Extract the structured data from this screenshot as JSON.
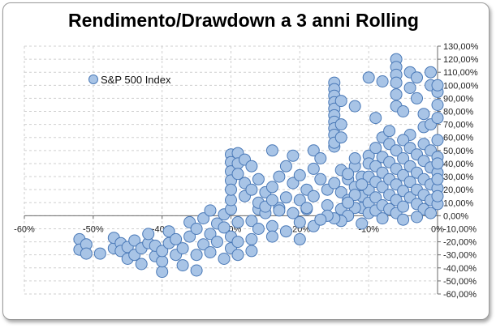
{
  "chart_data": {
    "type": "scatter",
    "title": "Rendimento/Drawdown a 3 anni Rolling",
    "xlabel": "",
    "ylabel": "",
    "xlim": [
      -0.6,
      0.0
    ],
    "ylim": [
      -0.6,
      1.3
    ],
    "x_ticks": [
      "-60%",
      "-50%",
      "-40%",
      "-30%",
      "-20%",
      "-10%",
      "0%"
    ],
    "y_ticks": [
      "130,00%",
      "120,00%",
      "110,00%",
      "100,00%",
      "90,00%",
      "80,00%",
      "70,00%",
      "60,00%",
      "50,00%",
      "40,00%",
      "30,00%",
      "20,00%",
      "10,00%",
      "0,00%",
      "-10,00%",
      "-20,00%",
      "-30,00%",
      "-40,00%",
      "-50,00%",
      "-60,00%"
    ],
    "grid": true,
    "legend_position": "top-left",
    "series": [
      {
        "name": "S&P 500 Index",
        "color": "#a8c4e6",
        "points": [
          [
            -0.52,
            -0.18
          ],
          [
            -0.52,
            -0.26
          ],
          [
            -0.51,
            -0.22
          ],
          [
            -0.51,
            -0.29
          ],
          [
            -0.49,
            -0.29
          ],
          [
            -0.47,
            -0.25
          ],
          [
            -0.47,
            -0.17
          ],
          [
            -0.46,
            -0.21
          ],
          [
            -0.46,
            -0.27
          ],
          [
            -0.45,
            -0.33
          ],
          [
            -0.45,
            -0.24
          ],
          [
            -0.44,
            -0.19
          ],
          [
            -0.44,
            -0.3
          ],
          [
            -0.43,
            -0.37
          ],
          [
            -0.43,
            -0.25
          ],
          [
            -0.42,
            -0.21
          ],
          [
            -0.42,
            -0.14
          ],
          [
            -0.41,
            -0.31
          ],
          [
            -0.41,
            -0.23
          ],
          [
            -0.4,
            -0.43
          ],
          [
            -0.4,
            -0.35
          ],
          [
            -0.4,
            -0.27
          ],
          [
            -0.39,
            -0.12
          ],
          [
            -0.39,
            -0.21
          ],
          [
            -0.38,
            -0.18
          ],
          [
            -0.38,
            -0.3
          ],
          [
            -0.37,
            -0.38
          ],
          [
            -0.37,
            -0.25
          ],
          [
            -0.36,
            -0.16
          ],
          [
            -0.36,
            -0.05
          ],
          [
            -0.35,
            -0.42
          ],
          [
            -0.35,
            -0.3
          ],
          [
            -0.35,
            -0.1
          ],
          [
            -0.34,
            -0.22
          ],
          [
            -0.34,
            -0.02
          ],
          [
            -0.33,
            -0.28
          ],
          [
            -0.33,
            -0.14
          ],
          [
            -0.33,
            0.04
          ],
          [
            -0.32,
            -0.06
          ],
          [
            -0.32,
            -0.2
          ],
          [
            -0.31,
            -0.33
          ],
          [
            -0.31,
            -0.09
          ],
          [
            -0.31,
            0.01
          ],
          [
            -0.3,
            -0.16
          ],
          [
            -0.3,
            -0.25
          ],
          [
            -0.3,
            0.05
          ],
          [
            -0.29,
            -0.05
          ],
          [
            -0.29,
            -0.2
          ],
          [
            -0.29,
            -0.3
          ],
          [
            -0.3,
            0.12
          ],
          [
            -0.27,
            -0.04
          ],
          [
            -0.27,
            -0.18
          ],
          [
            -0.27,
            -0.27
          ],
          [
            -0.26,
            -0.1
          ],
          [
            -0.26,
            0.05
          ],
          [
            -0.25,
            0.02
          ],
          [
            -0.24,
            -0.08
          ],
          [
            -0.24,
            -0.16
          ],
          [
            -0.23,
            0.06
          ],
          [
            -0.22,
            -0.12
          ],
          [
            -0.21,
            0.02
          ],
          [
            -0.2,
            -0.18
          ],
          [
            -0.2,
            -0.05
          ],
          [
            -0.19,
            0.05
          ],
          [
            -0.18,
            -0.08
          ],
          [
            -0.3,
            0.47
          ],
          [
            -0.3,
            0.41
          ],
          [
            -0.3,
            0.34
          ],
          [
            -0.3,
            0.27
          ],
          [
            -0.3,
            0.2
          ],
          [
            -0.29,
            0.48
          ],
          [
            -0.29,
            0.4
          ],
          [
            -0.29,
            0.32
          ],
          [
            -0.28,
            0.43
          ],
          [
            -0.28,
            0.25
          ],
          [
            -0.28,
            0.15
          ],
          [
            -0.27,
            0.38
          ],
          [
            -0.27,
            0.2
          ],
          [
            -0.26,
            0.28
          ],
          [
            -0.26,
            0.1
          ],
          [
            -0.25,
            0.18
          ],
          [
            -0.25,
            0.07
          ],
          [
            -0.24,
            0.22
          ],
          [
            -0.24,
            0.12
          ],
          [
            -0.24,
            0.5
          ],
          [
            -0.23,
            0.3
          ],
          [
            -0.23,
            0.04
          ],
          [
            -0.22,
            0.38
          ],
          [
            -0.22,
            0.14
          ],
          [
            -0.21,
            0.25
          ],
          [
            -0.21,
            0.46
          ],
          [
            -0.2,
            0.31
          ],
          [
            -0.2,
            0.12
          ],
          [
            -0.19,
            0.2
          ],
          [
            -0.19,
            0.06
          ],
          [
            -0.18,
            0.5
          ],
          [
            -0.18,
            0.36
          ],
          [
            -0.18,
            0.15
          ],
          [
            -0.17,
            0.44
          ],
          [
            -0.17,
            0.28
          ],
          [
            -0.16,
            0.2
          ],
          [
            -0.16,
            0.08
          ],
          [
            -0.15,
            0.25
          ],
          [
            -0.15,
            0.53
          ],
          [
            -0.14,
            0.18
          ],
          [
            -0.14,
            0.35
          ],
          [
            -0.14,
            0.05
          ],
          [
            -0.13,
            0.28
          ],
          [
            -0.13,
            0.12
          ],
          [
            -0.12,
            0.38
          ],
          [
            -0.12,
            0.22
          ],
          [
            -0.11,
            0.3
          ],
          [
            -0.11,
            0.15
          ],
          [
            -0.11,
            0.06
          ],
          [
            -0.1,
            0.46
          ],
          [
            -0.15,
            1.02
          ],
          [
            -0.15,
            0.97
          ],
          [
            -0.15,
            0.92
          ],
          [
            -0.15,
            0.87
          ],
          [
            -0.15,
            0.82
          ],
          [
            -0.15,
            0.77
          ],
          [
            -0.15,
            0.72
          ],
          [
            -0.15,
            0.67
          ],
          [
            -0.15,
            0.62
          ],
          [
            -0.15,
            0.56
          ],
          [
            -0.14,
            0.88
          ],
          [
            -0.14,
            0.7
          ],
          [
            -0.14,
            0.6
          ],
          [
            -0.12,
            0.84
          ],
          [
            -0.1,
            1.06
          ],
          [
            -0.09,
            0.75
          ],
          [
            -0.08,
            1.03
          ],
          [
            -0.08,
            0.6
          ],
          [
            -0.06,
            1.2
          ],
          [
            -0.06,
            1.14
          ],
          [
            -0.06,
            1.08
          ],
          [
            -0.06,
            1.02
          ],
          [
            -0.06,
            0.93
          ],
          [
            -0.06,
            0.84
          ],
          [
            -0.05,
            0.8
          ],
          [
            -0.04,
            1.1
          ],
          [
            -0.04,
            0.98
          ],
          [
            -0.04,
            0.62
          ],
          [
            -0.03,
            1.06
          ],
          [
            -0.03,
            0.9
          ],
          [
            -0.02,
            0.78
          ],
          [
            -0.02,
            0.68
          ],
          [
            -0.01,
            1.1
          ],
          [
            -0.01,
            1.0
          ],
          [
            -0.01,
            0.7
          ],
          [
            0.0,
            0.95
          ],
          [
            0.0,
            0.85
          ],
          [
            0.0,
            0.75
          ],
          [
            0.0,
            1.0
          ],
          [
            -0.07,
            0.65
          ],
          [
            -0.1,
            0.4
          ],
          [
            -0.1,
            0.3
          ],
          [
            -0.1,
            0.2
          ],
          [
            -0.1,
            0.1
          ],
          [
            -0.1,
            0.02
          ],
          [
            -0.09,
            0.52
          ],
          [
            -0.09,
            0.38
          ],
          [
            -0.09,
            0.26
          ],
          [
            -0.09,
            0.14
          ],
          [
            -0.09,
            0.04
          ],
          [
            -0.08,
            0.45
          ],
          [
            -0.08,
            0.33
          ],
          [
            -0.08,
            0.22
          ],
          [
            -0.08,
            0.08
          ],
          [
            -0.07,
            0.55
          ],
          [
            -0.07,
            0.41
          ],
          [
            -0.07,
            0.28
          ],
          [
            -0.07,
            0.16
          ],
          [
            -0.07,
            0.05
          ],
          [
            -0.06,
            0.5
          ],
          [
            -0.06,
            0.36
          ],
          [
            -0.06,
            0.24
          ],
          [
            -0.06,
            0.12
          ],
          [
            -0.06,
            0.02
          ],
          [
            -0.05,
            0.58
          ],
          [
            -0.05,
            0.44
          ],
          [
            -0.05,
            0.31
          ],
          [
            -0.05,
            0.19
          ],
          [
            -0.05,
            0.07
          ],
          [
            -0.04,
            0.52
          ],
          [
            -0.04,
            0.38
          ],
          [
            -0.04,
            0.26
          ],
          [
            -0.04,
            0.14
          ],
          [
            -0.03,
            0.47
          ],
          [
            -0.03,
            0.33
          ],
          [
            -0.03,
            0.2
          ],
          [
            -0.03,
            0.09
          ],
          [
            -0.02,
            0.55
          ],
          [
            -0.02,
            0.42
          ],
          [
            -0.02,
            0.28
          ],
          [
            -0.02,
            0.16
          ],
          [
            -0.02,
            0.05
          ],
          [
            -0.01,
            0.5
          ],
          [
            -0.01,
            0.37
          ],
          [
            -0.01,
            0.24
          ],
          [
            -0.01,
            0.12
          ],
          [
            -0.01,
            0.02
          ],
          [
            0.0,
            0.58
          ],
          [
            0.0,
            0.45
          ],
          [
            0.0,
            0.33
          ],
          [
            0.0,
            0.21
          ],
          [
            0.0,
            0.09
          ],
          [
            0.0,
            0.4
          ],
          [
            0.0,
            0.28
          ],
          [
            0.0,
            0.15
          ],
          [
            -0.12,
            0.06
          ],
          [
            -0.13,
            0.0
          ],
          [
            -0.14,
            -0.04
          ],
          [
            -0.15,
            -0.02
          ],
          [
            -0.16,
            0.0
          ],
          [
            -0.17,
            -0.03
          ],
          [
            -0.08,
            -0.02
          ],
          [
            -0.11,
            -0.06
          ],
          [
            -0.05,
            -0.03
          ],
          [
            -0.03,
            -0.01
          ],
          [
            -0.12,
            0.44
          ],
          [
            -0.13,
            0.32
          ],
          [
            -0.11,
            0.24
          ],
          [
            -0.12,
            0.16
          ],
          [
            -0.13,
            0.1
          ]
        ]
      }
    ]
  }
}
